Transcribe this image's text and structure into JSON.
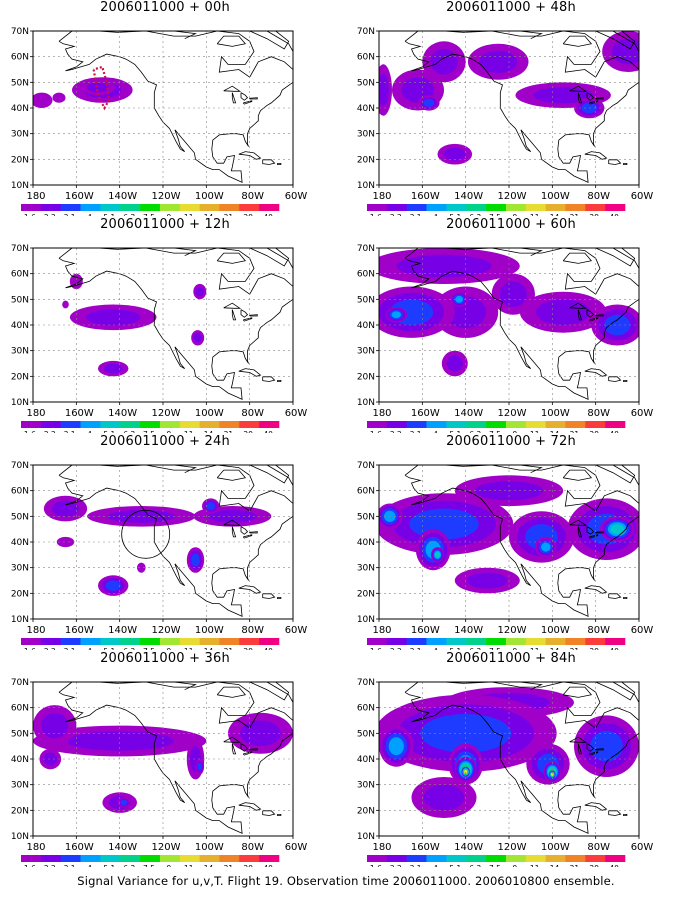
{
  "caption": "Signal Variance for u,v,T. Flight 19. Observation time 2006011000. 2006010800 ensemble.",
  "axes": {
    "lat_labels": [
      "10N",
      "20N",
      "30N",
      "40N",
      "50N",
      "60N",
      "70N"
    ],
    "lon_labels": [
      "180",
      "160W",
      "140W",
      "120W",
      "100W",
      "80W",
      "60W"
    ]
  },
  "colorbar": {
    "labels": [
      "1.6",
      "2.2",
      "3.1",
      "4",
      "5.1",
      "6.3",
      "7.5",
      "9",
      "11",
      "14",
      "21",
      "29",
      "40"
    ],
    "colors": [
      "#a000c8",
      "#7800e6",
      "#1e3cff",
      "#00a0ff",
      "#00c8c8",
      "#00d28c",
      "#00dc00",
      "#a0e632",
      "#e6dc32",
      "#e6af2d",
      "#f08228",
      "#fa3c3c",
      "#f00082"
    ]
  },
  "panels": [
    {
      "title": "2006011000 + 00h",
      "max_level": 2,
      "marker": true,
      "circle": false,
      "blobs": [
        {
          "lon": -148,
          "lat": 47,
          "rx": 14,
          "ry": 5,
          "lvl": 1
        },
        {
          "lon": -176,
          "lat": 43,
          "rx": 5,
          "ry": 3,
          "lvl": 0
        },
        {
          "lon": -168,
          "lat": 44,
          "rx": 3,
          "ry": 2,
          "lvl": 0
        },
        {
          "lon": -150,
          "lat": 48,
          "rx": 8,
          "ry": 3,
          "lvl": 1
        }
      ]
    },
    {
      "title": "2006011000 + 48h",
      "max_level": 3,
      "marker": false,
      "circle": false,
      "blobs": [
        {
          "lon": -150,
          "lat": 58,
          "rx": 10,
          "ry": 8,
          "lvl": 1
        },
        {
          "lon": -162,
          "lat": 47,
          "rx": 12,
          "ry": 8,
          "lvl": 1
        },
        {
          "lon": -157,
          "lat": 42,
          "rx": 5,
          "ry": 3,
          "lvl": 2
        },
        {
          "lon": -125,
          "lat": 58,
          "rx": 14,
          "ry": 7,
          "lvl": 1
        },
        {
          "lon": -95,
          "lat": 45,
          "rx": 22,
          "ry": 5,
          "lvl": 1
        },
        {
          "lon": -65,
          "lat": 62,
          "rx": 12,
          "ry": 8,
          "lvl": 1
        },
        {
          "lon": -178,
          "lat": 47,
          "rx": 4,
          "ry": 10,
          "lvl": 1
        },
        {
          "lon": -145,
          "lat": 22,
          "rx": 8,
          "ry": 4,
          "lvl": 1
        },
        {
          "lon": -83,
          "lat": 40,
          "rx": 7,
          "ry": 4,
          "lvl": 2
        }
      ]
    },
    {
      "title": "2006011000 + 12h",
      "max_level": 2,
      "marker": false,
      "circle": false,
      "blobs": [
        {
          "lon": -143,
          "lat": 43,
          "rx": 20,
          "ry": 5,
          "lvl": 1
        },
        {
          "lon": -160,
          "lat": 57,
          "rx": 3,
          "ry": 3,
          "lvl": 0
        },
        {
          "lon": -103,
          "lat": 53,
          "rx": 3,
          "ry": 3,
          "lvl": 1
        },
        {
          "lon": -104,
          "lat": 35,
          "rx": 3,
          "ry": 3,
          "lvl": 1
        },
        {
          "lon": -143,
          "lat": 23,
          "rx": 7,
          "ry": 3,
          "lvl": 1
        },
        {
          "lon": -165,
          "lat": 48,
          "rx": 1.5,
          "ry": 1.5,
          "lvl": 0
        }
      ]
    },
    {
      "title": "2006011000 + 60h",
      "max_level": 4,
      "marker": false,
      "circle": false,
      "blobs": [
        {
          "lon": -150,
          "lat": 63,
          "rx": 35,
          "ry": 7,
          "lvl": 1
        },
        {
          "lon": -165,
          "lat": 45,
          "rx": 20,
          "ry": 10,
          "lvl": 2
        },
        {
          "lon": -140,
          "lat": 45,
          "rx": 15,
          "ry": 10,
          "lvl": 1
        },
        {
          "lon": -118,
          "lat": 52,
          "rx": 10,
          "ry": 8,
          "lvl": 1
        },
        {
          "lon": -95,
          "lat": 45,
          "rx": 20,
          "ry": 8,
          "lvl": 1
        },
        {
          "lon": -70,
          "lat": 40,
          "rx": 12,
          "ry": 8,
          "lvl": 2
        },
        {
          "lon": -145,
          "lat": 25,
          "rx": 6,
          "ry": 5,
          "lvl": 1
        },
        {
          "lon": -143,
          "lat": 50,
          "rx": 4,
          "ry": 3,
          "lvl": 3
        },
        {
          "lon": -172,
          "lat": 44,
          "rx": 5,
          "ry": 3,
          "lvl": 3
        }
      ]
    },
    {
      "title": "2006011000 + 24h",
      "max_level": 3,
      "marker": false,
      "circle": true,
      "blobs": [
        {
          "lon": -165,
          "lat": 53,
          "rx": 10,
          "ry": 5,
          "lvl": 1
        },
        {
          "lon": -130,
          "lat": 50,
          "rx": 25,
          "ry": 4,
          "lvl": 1
        },
        {
          "lon": -105,
          "lat": 33,
          "rx": 4,
          "ry": 5,
          "lvl": 2
        },
        {
          "lon": -143,
          "lat": 23,
          "rx": 7,
          "ry": 4,
          "lvl": 2
        },
        {
          "lon": -165,
          "lat": 40,
          "rx": 4,
          "ry": 2,
          "lvl": 0
        },
        {
          "lon": -88,
          "lat": 50,
          "rx": 18,
          "ry": 4,
          "lvl": 1
        },
        {
          "lon": -130,
          "lat": 30,
          "rx": 2,
          "ry": 2,
          "lvl": 0
        },
        {
          "lon": -98,
          "lat": 54,
          "rx": 4,
          "ry": 3,
          "lvl": 2
        }
      ]
    },
    {
      "title": "2006011000 + 72h",
      "max_level": 5,
      "marker": false,
      "circle": false,
      "blobs": [
        {
          "lon": -150,
          "lat": 47,
          "rx": 32,
          "ry": 12,
          "lvl": 2
        },
        {
          "lon": -155,
          "lat": 37,
          "rx": 8,
          "ry": 8,
          "lvl": 3
        },
        {
          "lon": -153,
          "lat": 35,
          "rx": 3,
          "ry": 3,
          "lvl": 4
        },
        {
          "lon": -105,
          "lat": 42,
          "rx": 15,
          "ry": 10,
          "lvl": 2
        },
        {
          "lon": -103,
          "lat": 38,
          "rx": 5,
          "ry": 4,
          "lvl": 3
        },
        {
          "lon": -75,
          "lat": 45,
          "rx": 18,
          "ry": 12,
          "lvl": 2
        },
        {
          "lon": -70,
          "lat": 45,
          "rx": 8,
          "ry": 5,
          "lvl": 4
        },
        {
          "lon": -120,
          "lat": 60,
          "rx": 25,
          "ry": 6,
          "lvl": 1
        },
        {
          "lon": -130,
          "lat": 25,
          "rx": 15,
          "ry": 5,
          "lvl": 1
        },
        {
          "lon": -175,
          "lat": 50,
          "rx": 6,
          "ry": 5,
          "lvl": 3
        }
      ]
    },
    {
      "title": "2006011000 + 36h",
      "max_level": 2,
      "marker": false,
      "circle": false,
      "blobs": [
        {
          "lon": -140,
          "lat": 47,
          "rx": 40,
          "ry": 6,
          "lvl": 1
        },
        {
          "lon": -170,
          "lat": 53,
          "rx": 10,
          "ry": 8,
          "lvl": 1
        },
        {
          "lon": -105,
          "lat": 40,
          "rx": 4,
          "ry": 8,
          "lvl": 1
        },
        {
          "lon": -103,
          "lat": 37,
          "rx": 2,
          "ry": 3,
          "lvl": 2
        },
        {
          "lon": -75,
          "lat": 50,
          "rx": 15,
          "ry": 8,
          "lvl": 1
        },
        {
          "lon": -140,
          "lat": 23,
          "rx": 8,
          "ry": 4,
          "lvl": 1
        },
        {
          "lon": -138,
          "lat": 23,
          "rx": 3,
          "ry": 2,
          "lvl": 2
        },
        {
          "lon": -172,
          "lat": 40,
          "rx": 5,
          "ry": 4,
          "lvl": 1
        }
      ]
    },
    {
      "title": "2006011000 + 84h",
      "max_level": 8,
      "marker": false,
      "circle": false,
      "blobs": [
        {
          "lon": -140,
          "lat": 50,
          "rx": 42,
          "ry": 15,
          "lvl": 2
        },
        {
          "lon": -140,
          "lat": 38,
          "rx": 8,
          "ry": 8,
          "lvl": 3
        },
        {
          "lon": -140,
          "lat": 36,
          "rx": 5,
          "ry": 5,
          "lvl": 5
        },
        {
          "lon": -140,
          "lat": 35,
          "rx": 2,
          "ry": 2,
          "lvl": 8
        },
        {
          "lon": -102,
          "lat": 38,
          "rx": 10,
          "ry": 8,
          "lvl": 2
        },
        {
          "lon": -100,
          "lat": 35,
          "rx": 4,
          "ry": 4,
          "lvl": 5
        },
        {
          "lon": -100,
          "lat": 34,
          "rx": 1.5,
          "ry": 1.5,
          "lvl": 8
        },
        {
          "lon": -75,
          "lat": 45,
          "rx": 15,
          "ry": 12,
          "lvl": 2
        },
        {
          "lon": -150,
          "lat": 25,
          "rx": 15,
          "ry": 8,
          "lvl": 1
        },
        {
          "lon": -172,
          "lat": 45,
          "rx": 8,
          "ry": 8,
          "lvl": 3
        },
        {
          "lon": -120,
          "lat": 62,
          "rx": 30,
          "ry": 6,
          "lvl": 1
        }
      ]
    }
  ]
}
